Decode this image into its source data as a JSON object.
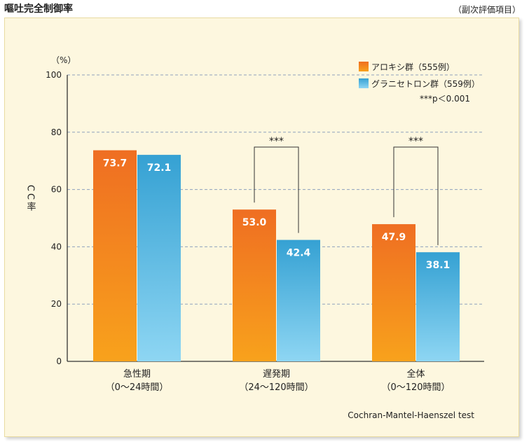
{
  "page": {
    "title": "嘔吐完全制御率",
    "note": "（副次評価項目）",
    "footnote": "Cochran-Mantel-Haenszel test"
  },
  "chart_data": {
    "type": "bar",
    "categories": [
      "急性期",
      "遅発期",
      "全体"
    ],
    "category_sublabels": [
      "（0〜24時間）",
      "（24〜120時間）",
      "（0〜120時間）"
    ],
    "series": [
      {
        "name": "アロキシ群（555例）",
        "values": [
          73.7,
          53.0,
          47.9
        ],
        "color": "#f07a24"
      },
      {
        "name": "グラニセトロン群（559例）",
        "values": [
          72.1,
          42.4,
          38.1
        ],
        "color": "#3ea6d6"
      }
    ],
    "value_labels": [
      [
        "73.7",
        "53.0",
        "47.9"
      ],
      [
        "72.1",
        "42.4",
        "38.1"
      ]
    ],
    "ylabel": "CC率",
    "yunit": "（%）",
    "ylim": [
      0,
      100
    ],
    "yticks": [
      0,
      20,
      40,
      60,
      80,
      100
    ],
    "grid": true,
    "legend_position": "top-right",
    "significance": [
      {
        "category_index": 1,
        "label": "***"
      },
      {
        "category_index": 2,
        "label": "***"
      }
    ],
    "significance_note": "***p＜0.001"
  }
}
